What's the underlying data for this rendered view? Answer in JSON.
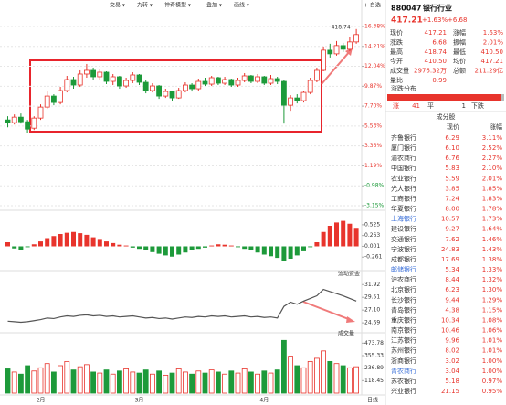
{
  "toolbar": {
    "items": [
      "交易 ▾",
      "九转 ▾",
      "神奇模型 ▾",
      "叠加 ▾",
      "画线 ▾",
      "+ 自选"
    ],
    "period": "日线"
  },
  "chart_data": [
    {
      "type": "candlestick",
      "max_label": 418.74,
      "up_color": "#e8342c",
      "down_color": "#1d9a3a",
      "grid": true,
      "ylim": [
        -3.15,
        16.38
      ],
      "yticks": [
        {
          "value": 16.38,
          "label": "16.38%"
        },
        {
          "value": 14.21,
          "label": "14.21%"
        },
        {
          "value": 12.04,
          "label": "12.04%"
        },
        {
          "value": 9.87,
          "label": "9.87%"
        },
        {
          "value": 7.7,
          "label": "7.70%"
        },
        {
          "value": 5.53,
          "label": "5.53%"
        },
        {
          "value": 3.36,
          "label": "3.36%"
        },
        {
          "value": 1.19,
          "label": "1.19%"
        },
        {
          "value": -0.98,
          "label": "-0.98%"
        },
        {
          "value": -3.15,
          "label": "-3.15%"
        }
      ],
      "categories": [
        null,
        null,
        null,
        null,
        null,
        "2月",
        null,
        null,
        null,
        null,
        null,
        null,
        null,
        null,
        null,
        null,
        null,
        null,
        null,
        null,
        "3月",
        null,
        null,
        null,
        null,
        null,
        null,
        null,
        null,
        null,
        null,
        null,
        null,
        null,
        null,
        null,
        null,
        null,
        null,
        "4月",
        null,
        null,
        null,
        null,
        null,
        null,
        null,
        null,
        null,
        null,
        null,
        null,
        null,
        null
      ],
      "open": [
        6.2,
        5.9,
        6.5,
        6.0,
        5.3,
        6.4,
        7.6,
        8.8,
        8.1,
        9.4,
        10.6,
        10.0,
        11.2,
        11.6,
        10.9,
        11.4,
        10.4,
        10.9,
        9.9,
        10.5,
        11.1,
        10.3,
        9.4,
        9.9,
        8.8,
        9.3,
        8.6,
        9.4,
        10.0,
        9.6,
        10.4,
        10.1,
        10.8,
        10.2,
        10.6,
        10.0,
        10.5,
        11.0,
        10.4,
        10.9,
        10.2,
        10.7,
        10.4,
        7.8,
        8.6,
        8.3,
        9.2,
        10.5,
        11.6,
        13.8,
        13.4,
        14.3,
        13.9,
        14.7
      ],
      "close": [
        5.9,
        6.5,
        6.0,
        5.2,
        6.4,
        7.6,
        8.8,
        8.1,
        9.4,
        10.6,
        10.0,
        11.2,
        11.6,
        10.9,
        11.4,
        10.4,
        10.9,
        9.9,
        10.5,
        11.1,
        10.3,
        9.4,
        9.9,
        8.8,
        9.3,
        8.6,
        9.4,
        10.0,
        9.6,
        10.4,
        10.1,
        10.8,
        10.2,
        10.6,
        10.0,
        10.5,
        11.0,
        10.4,
        10.9,
        10.2,
        10.7,
        10.4,
        7.8,
        8.6,
        8.3,
        9.2,
        10.5,
        11.6,
        13.8,
        13.4,
        14.3,
        13.9,
        14.7,
        15.5
      ],
      "high": [
        6.6,
        6.8,
        6.9,
        6.2,
        6.6,
        7.9,
        9.3,
        9.0,
        9.8,
        11.0,
        10.9,
        11.6,
        12.3,
        11.9,
        11.8,
        11.5,
        11.2,
        11.0,
        10.8,
        11.4,
        11.2,
        10.5,
        10.2,
        10.0,
        9.6,
        9.4,
        9.7,
        10.3,
        10.2,
        10.7,
        10.8,
        11.0,
        10.9,
        10.9,
        10.7,
        10.8,
        11.3,
        11.1,
        11.2,
        11.0,
        11.1,
        10.9,
        10.5,
        8.9,
        9.0,
        9.4,
        10.8,
        11.9,
        14.2,
        14.5,
        14.8,
        14.6,
        15.2,
        16.1
      ],
      "low": [
        5.4,
        5.7,
        5.8,
        4.8,
        5.1,
        6.2,
        7.4,
        7.8,
        7.9,
        9.2,
        9.6,
        9.8,
        10.8,
        10.5,
        10.6,
        10.1,
        10.0,
        9.6,
        9.7,
        10.2,
        10.0,
        9.1,
        9.2,
        8.5,
        8.6,
        8.3,
        8.5,
        9.2,
        9.3,
        9.4,
        9.9,
        9.9,
        10.0,
        10.0,
        9.8,
        9.8,
        10.3,
        10.2,
        10.2,
        10.0,
        10.0,
        10.1,
        5.8,
        7.2,
        8.0,
        8.1,
        9.0,
        10.3,
        11.5,
        13.0,
        13.2,
        13.6,
        13.7,
        14.5
      ]
    },
    {
      "type": "bar",
      "ylim": [
        -0.5,
        0.7
      ],
      "yticks": [
        0.525,
        0.263,
        0.001,
        -0.261
      ],
      "up_color": "#e8342c",
      "down_color": "#1d9a3a",
      "values": [
        0.1,
        -0.05,
        -0.08,
        -0.02,
        0.05,
        0.12,
        0.2,
        0.25,
        0.3,
        0.33,
        0.35,
        0.32,
        0.28,
        0.22,
        0.18,
        0.12,
        0.08,
        0.04,
        0.02,
        -0.03,
        -0.06,
        -0.1,
        -0.14,
        -0.18,
        -0.22,
        -0.25,
        -0.2,
        -0.15,
        -0.1,
        -0.06,
        -0.03,
        0.02,
        0.05,
        0.04,
        0.02,
        -0.02,
        -0.06,
        -0.1,
        -0.15,
        -0.2,
        -0.24,
        -0.28,
        -0.35,
        -0.3,
        -0.22,
        -0.12,
        -0.02,
        0.1,
        0.35,
        0.5,
        0.58,
        0.62,
        0.55,
        0.45
      ]
    },
    {
      "type": "line",
      "title": "流动资金",
      "color": "#555555",
      "ylim": [
        23.5,
        33
      ],
      "yticks": [
        31.92,
        29.51,
        {
          "value": 27.1,
          "label": "27.10"
        },
        24.69
      ],
      "values": [
        25.0,
        24.9,
        24.8,
        24.9,
        25.1,
        25.3,
        25.6,
        25.5,
        25.8,
        26.0,
        25.9,
        26.1,
        26.2,
        26.0,
        26.1,
        25.9,
        26.0,
        25.8,
        25.9,
        26.0,
        25.8,
        25.6,
        25.7,
        25.5,
        25.6,
        25.4,
        25.6,
        25.8,
        25.7,
        25.9,
        25.8,
        26.0,
        25.9,
        26.0,
        25.8,
        25.9,
        26.0,
        25.8,
        25.9,
        25.7,
        25.8,
        25.6,
        27.8,
        28.6,
        28.2,
        28.8,
        29.3,
        29.8,
        31.0,
        30.6,
        30.2,
        29.8,
        29.3,
        28.8
      ]
    },
    {
      "type": "volume",
      "title": "成交量",
      "ylim": [
        0,
        520
      ],
      "yticks": [
        473.78,
        355.33,
        236.89,
        118.45
      ],
      "values": [
        230,
        200,
        180,
        260,
        210,
        240,
        280,
        200,
        260,
        300,
        220,
        250,
        270,
        200,
        190,
        220,
        180,
        210,
        230,
        200,
        190,
        220,
        180,
        210,
        170,
        190,
        230,
        200,
        180,
        210,
        190,
        220,
        200,
        180,
        210,
        190,
        230,
        200,
        180,
        210,
        190,
        220,
        500,
        350,
        260,
        240,
        300,
        330,
        400,
        300,
        280,
        260,
        240,
        250
      ]
    }
  ],
  "panel": {
    "code": "880047",
    "name": "银行行业",
    "price": "417.21",
    "change_pct": "+1.63%",
    "change": "+6.68",
    "quote": [
      [
        "现价",
        "417.21",
        "涨幅",
        "1.63%"
      ],
      [
        "涨跌",
        "6.68",
        "振幅",
        "2.01%"
      ],
      [
        "最高",
        "418.74",
        "最低",
        "410.50"
      ],
      [
        "今开",
        "410.50",
        "均价",
        "417.21"
      ],
      [
        "成交量",
        "2976.32万",
        "总额",
        "211.29亿"
      ],
      [
        "量比",
        "0.99"
      ]
    ],
    "distribution": {
      "title": "涨跌分布",
      "up_label": "涨",
      "up": 41,
      "flat_label": "平",
      "flat": 1,
      "down_label": "下跌"
    },
    "components": {
      "title": "成分股",
      "headers": [
        "现价",
        "涨幅"
      ],
      "rows": [
        {
          "name": "齐鲁银行",
          "price": "6.29",
          "change": "3.11%"
        },
        {
          "name": "厦门银行",
          "price": "6.10",
          "change": "2.52%"
        },
        {
          "name": "渝农商行",
          "price": "6.76",
          "change": "2.27%"
        },
        {
          "name": "中国银行",
          "price": "5.83",
          "change": "2.10%"
        },
        {
          "name": "农业银行",
          "price": "5.59",
          "change": "2.01%"
        },
        {
          "name": "光大银行",
          "price": "3.85",
          "change": "1.85%"
        },
        {
          "name": "工商银行",
          "price": "7.24",
          "change": "1.83%"
        },
        {
          "name": "华夏银行",
          "price": "8.00",
          "change": "1.78%"
        },
        {
          "name": "上海银行",
          "price": "10.57",
          "change": "1.73%",
          "name_color": "#3a6fd8"
        },
        {
          "name": "建设银行",
          "price": "9.27",
          "change": "1.64%"
        },
        {
          "name": "交通银行",
          "price": "7.62",
          "change": "1.46%"
        },
        {
          "name": "宁波银行",
          "price": "24.83",
          "change": "1.43%"
        },
        {
          "name": "成都银行",
          "price": "17.69",
          "change": "1.38%"
        },
        {
          "name": "邮储银行",
          "price": "5.34",
          "change": "1.33%",
          "name_color": "#3a6fd8"
        },
        {
          "name": "沪农商行",
          "price": "8.44",
          "change": "1.32%"
        },
        {
          "name": "北京银行",
          "price": "6.23",
          "change": "1.30%"
        },
        {
          "name": "长沙银行",
          "price": "9.44",
          "change": "1.29%"
        },
        {
          "name": "青岛银行",
          "price": "4.38",
          "change": "1.15%"
        },
        {
          "name": "重庆银行",
          "price": "10.34",
          "change": "1.08%"
        },
        {
          "name": "南京银行",
          "price": "10.46",
          "change": "1.06%"
        },
        {
          "name": "江苏银行",
          "price": "9.96",
          "change": "1.01%"
        },
        {
          "name": "苏州银行",
          "price": "8.02",
          "change": "1.01%"
        },
        {
          "name": "浙商银行",
          "price": "3.02",
          "change": "1.00%"
        },
        {
          "name": "青农商行",
          "price": "3.04",
          "change": "1.00%",
          "name_color": "#3a6fd8"
        },
        {
          "name": "苏农银行",
          "price": "5.18",
          "change": "0.97%"
        },
        {
          "name": "兴业银行",
          "price": "21.15",
          "change": "0.95%"
        }
      ]
    }
  }
}
